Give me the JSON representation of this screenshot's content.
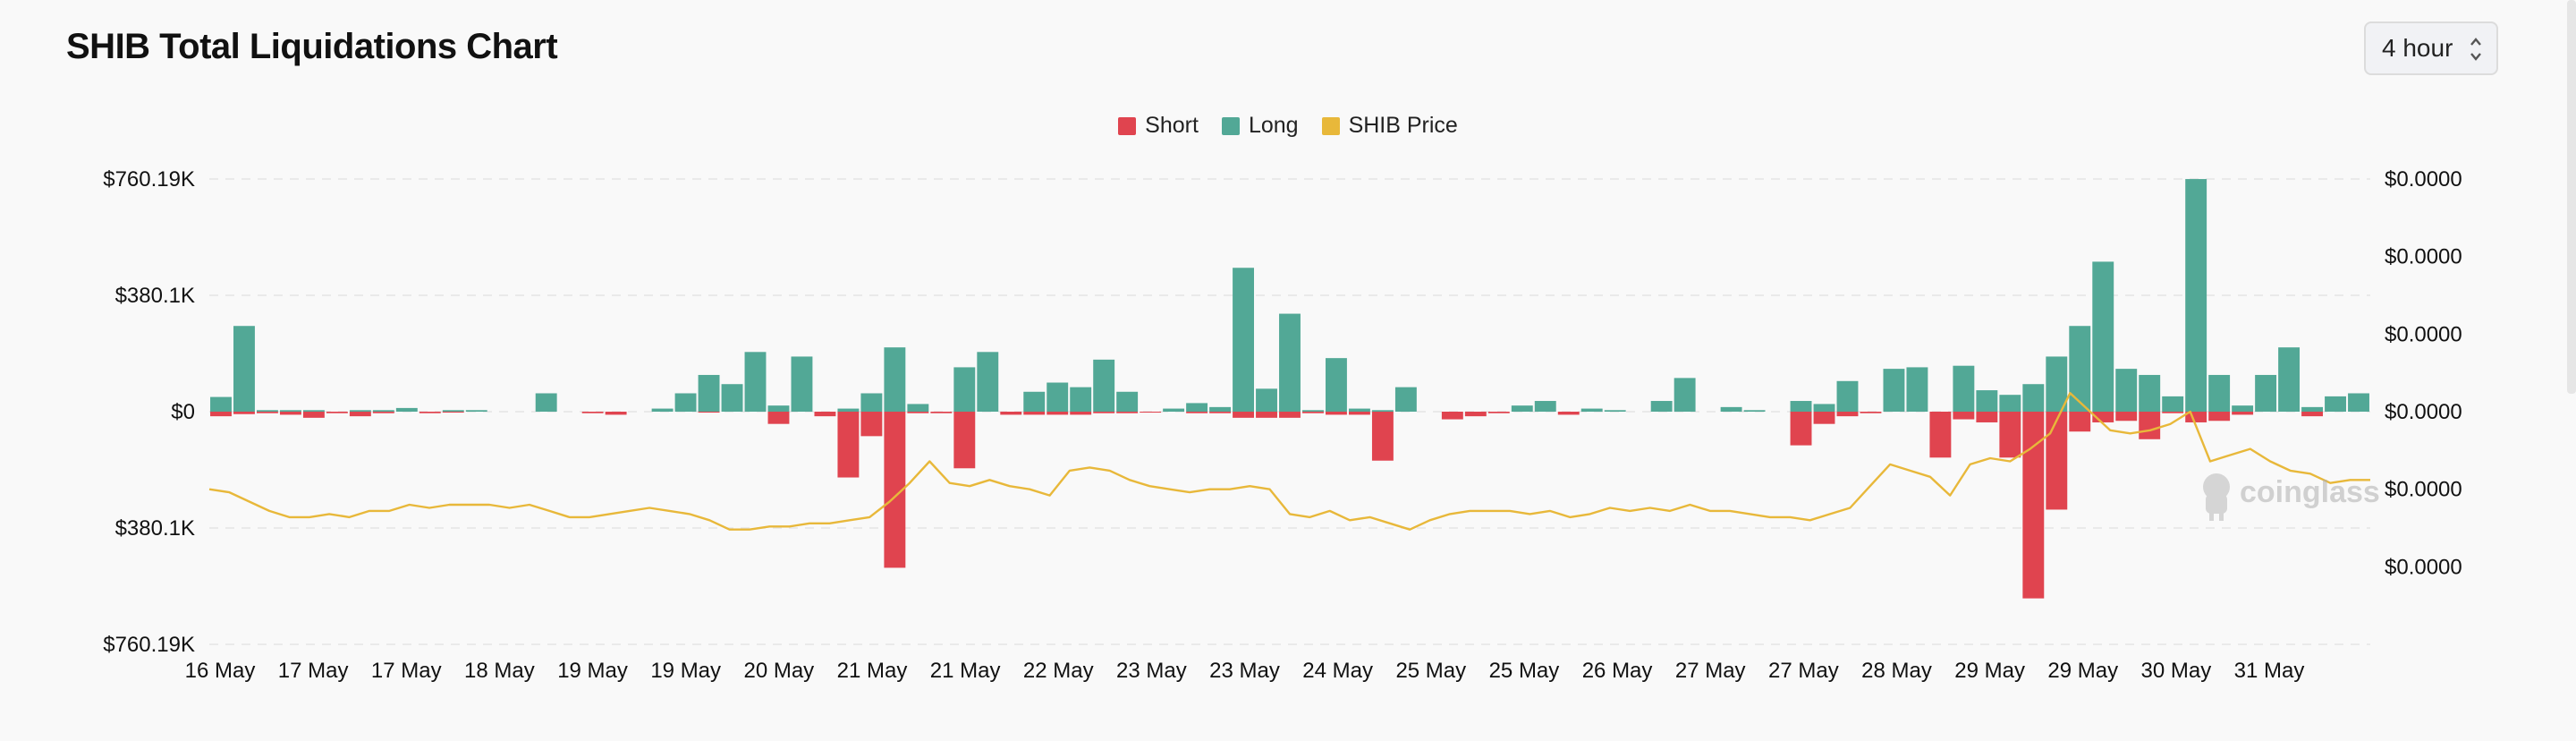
{
  "title": "SHIB Total Liquidations Chart",
  "interval_select": {
    "value": "4 hour"
  },
  "legend": [
    {
      "label": "Short",
      "color": "#e0444f"
    },
    {
      "label": "Long",
      "color": "#52a896"
    },
    {
      "label": "SHIB Price",
      "color": "#e8b83a"
    }
  ],
  "watermark": "coinglass",
  "chart_data": {
    "type": "bar",
    "title": "SHIB Total Liquidations Chart",
    "series": [
      {
        "name": "Long",
        "color": "#52a896"
      },
      {
        "name": "Short",
        "color": "#e0444f"
      },
      {
        "name": "SHIB Price",
        "color": "#e8b83a",
        "axis": "right",
        "type": "line"
      }
    ],
    "ylim": [
      -760190,
      760190
    ],
    "y_ticks": [
      "$760.19K",
      "$380.1K",
      "$0",
      "$380.1K",
      "$760.19K"
    ],
    "y_tick_values": [
      760190,
      380100,
      0,
      -380100,
      -760190
    ],
    "y2_ticks": [
      "$0.0000",
      "$0.0000",
      "$0.0000",
      "$0.0000",
      "$0.0000",
      "$0.0000"
    ],
    "x_ticks": [
      "16 May",
      "17 May",
      "17 May",
      "18 May",
      "19 May",
      "19 May",
      "20 May",
      "21 May",
      "21 May",
      "22 May",
      "23 May",
      "23 May",
      "24 May",
      "25 May",
      "25 May",
      "26 May",
      "27 May",
      "27 May",
      "28 May",
      "29 May",
      "29 May",
      "30 May",
      "31 May"
    ],
    "long": [
      48000,
      280000,
      5000,
      5000,
      5000,
      0,
      5000,
      5000,
      12000,
      0,
      5000,
      5000,
      0,
      0,
      60000,
      0,
      0,
      0,
      0,
      10000,
      60000,
      120000,
      90000,
      195000,
      20000,
      180000,
      0,
      10000,
      60000,
      210000,
      25000,
      0,
      145000,
      195000,
      0,
      65000,
      95000,
      80000,
      170000,
      65000,
      0,
      10000,
      28000,
      15000,
      470000,
      75000,
      320000,
      5000,
      175000,
      10000,
      5000,
      80000,
      0,
      0,
      0,
      0,
      20000,
      35000,
      0,
      10000,
      5000,
      0,
      35000,
      110000,
      0,
      15000,
      5000,
      0,
      35000,
      25000,
      100000,
      0,
      140000,
      145000,
      0,
      150000,
      70000,
      55000,
      90000,
      180000,
      280000,
      490000,
      140000,
      120000,
      50000,
      760000,
      120000,
      20000,
      120000,
      210000,
      15000,
      50000,
      60000
    ],
    "short": [
      -15000,
      -8000,
      -5000,
      -10000,
      -20000,
      -5000,
      -15000,
      -5000,
      0,
      -5000,
      -3000,
      0,
      0,
      0,
      0,
      0,
      -5000,
      -10000,
      0,
      0,
      0,
      -3000,
      0,
      0,
      -40000,
      0,
      -15000,
      -215000,
      -80000,
      -510000,
      -5000,
      -5000,
      -185000,
      0,
      -10000,
      -10000,
      -10000,
      -10000,
      -5000,
      -5000,
      -3000,
      0,
      -5000,
      -5000,
      -20000,
      -20000,
      -20000,
      -5000,
      -10000,
      -10000,
      -160000,
      0,
      0,
      -25000,
      -15000,
      -5000,
      0,
      0,
      -10000,
      0,
      0,
      0,
      0,
      0,
      0,
      0,
      0,
      0,
      -110000,
      -40000,
      -15000,
      -5000,
      0,
      0,
      -150000,
      -25000,
      -35000,
      -150000,
      -610000,
      -320000,
      -65000,
      -35000,
      -30000,
      -90000,
      -5000,
      -35000,
      -30000,
      -10000,
      0,
      0,
      -15000,
      0,
      0
    ],
    "price": [
      0.5,
      0.49,
      0.46,
      0.43,
      0.41,
      0.41,
      0.42,
      0.41,
      0.43,
      0.43,
      0.45,
      0.44,
      0.45,
      0.45,
      0.45,
      0.44,
      0.45,
      0.43,
      0.41,
      0.41,
      0.42,
      0.43,
      0.44,
      0.43,
      0.42,
      0.4,
      0.37,
      0.37,
      0.38,
      0.38,
      0.39,
      0.39,
      0.4,
      0.41,
      0.46,
      0.52,
      0.59,
      0.52,
      0.51,
      0.53,
      0.51,
      0.5,
      0.48,
      0.56,
      0.57,
      0.56,
      0.53,
      0.51,
      0.5,
      0.49,
      0.5,
      0.5,
      0.51,
      0.5,
      0.42,
      0.41,
      0.43,
      0.4,
      0.41,
      0.39,
      0.37,
      0.4,
      0.42,
      0.43,
      0.43,
      0.43,
      0.42,
      0.43,
      0.41,
      0.42,
      0.44,
      0.43,
      0.44,
      0.43,
      0.45,
      0.43,
      0.43,
      0.42,
      0.41,
      0.41,
      0.4,
      0.42,
      0.44,
      0.51,
      0.58,
      0.56,
      0.54,
      0.48,
      0.58,
      0.6,
      0.59,
      0.63,
      0.68,
      0.81,
      0.75,
      0.69,
      0.68,
      0.69,
      0.71,
      0.75,
      0.59,
      0.61,
      0.63,
      0.59,
      0.56,
      0.55,
      0.52,
      0.53,
      0.53
    ],
    "price_range": [
      0,
      1.5
    ],
    "grid": true,
    "legend_position": "top-center"
  }
}
